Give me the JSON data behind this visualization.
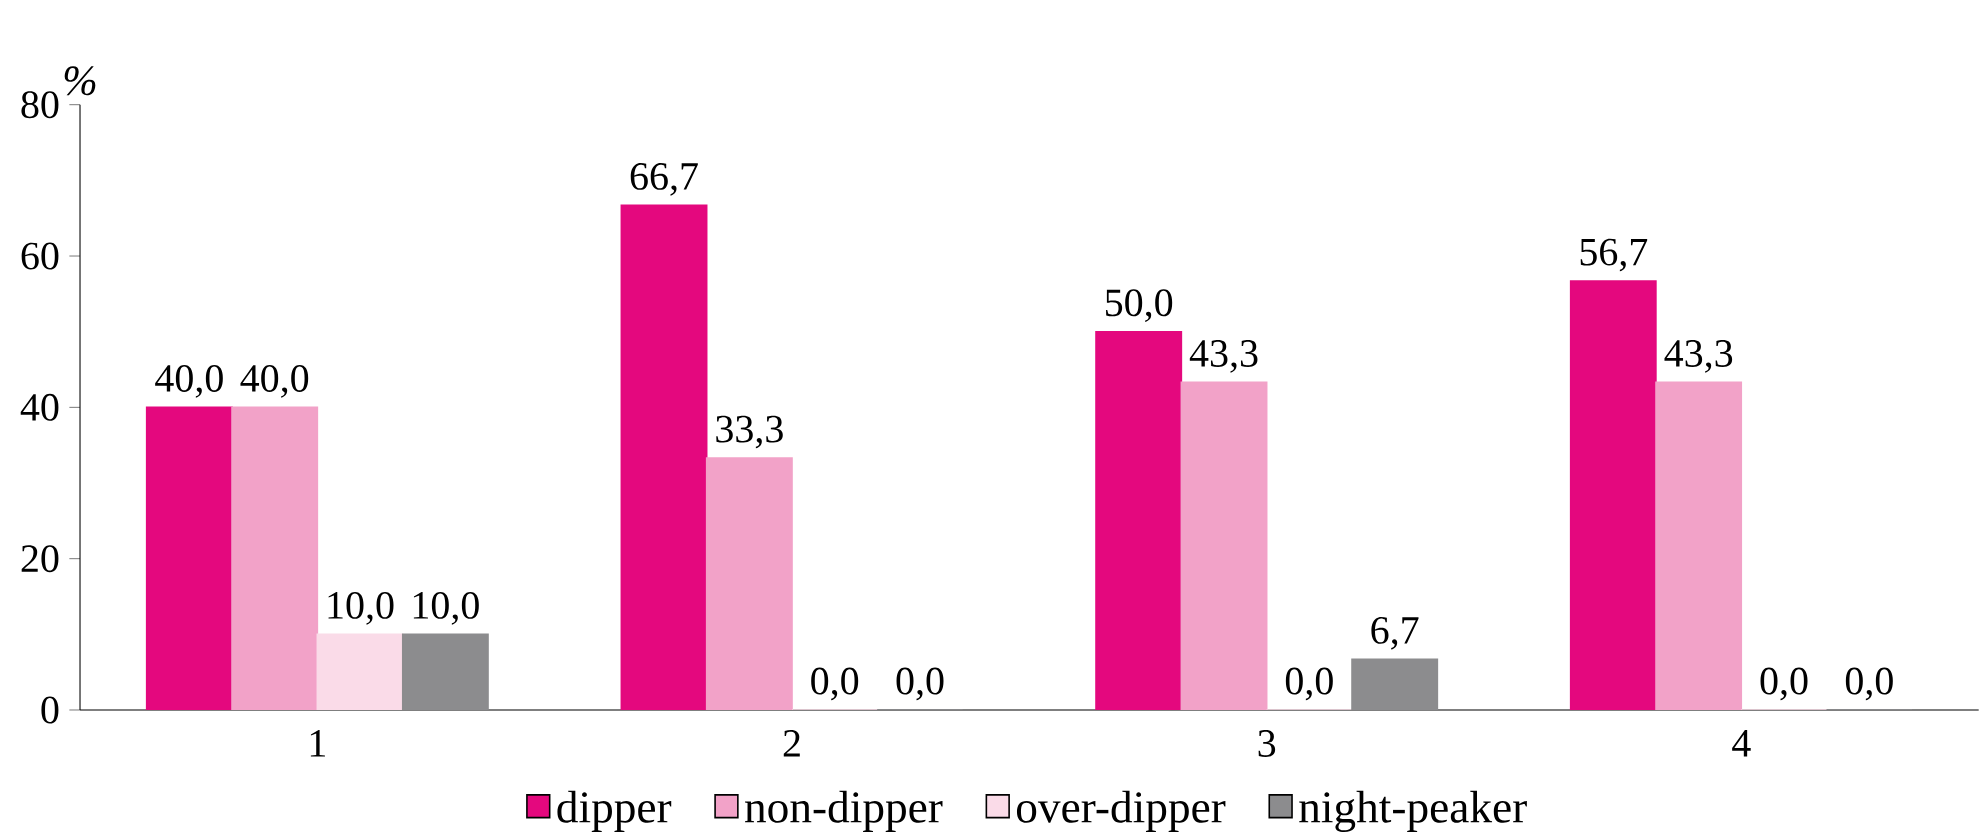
{
  "chart_data": {
    "type": "bar",
    "ylabel": "%",
    "categories": [
      "1",
      "2",
      "3",
      "4"
    ],
    "ylim": [
      0,
      80
    ],
    "yticks": [
      0,
      20,
      40,
      60,
      80
    ],
    "legend": "bottom",
    "series": [
      {
        "name": "dipper",
        "color": "#e4087e",
        "values": [
          40.0,
          66.7,
          50.0,
          56.7
        ],
        "value_labels": [
          "40,0",
          "66,7",
          "50,0",
          "56,7"
        ]
      },
      {
        "name": "non-dipper",
        "color": "#f2a2c8",
        "values": [
          40.0,
          33.3,
          43.3,
          43.3
        ],
        "value_labels": [
          "40,0",
          "33,3",
          "43,3",
          "43,3"
        ]
      },
      {
        "name": "over-dipper",
        "color": "#fadbe8",
        "values": [
          10.0,
          0.0,
          0.0,
          0.0
        ],
        "value_labels": [
          "10,0",
          "0,0",
          "0,0",
          "0,0"
        ]
      },
      {
        "name": "night-peaker",
        "color": "#8c8c8e",
        "values": [
          10.0,
          0.0,
          6.7,
          0.0
        ],
        "value_labels": [
          "10,0",
          "0,0",
          "6,7",
          "0,0"
        ]
      }
    ]
  }
}
